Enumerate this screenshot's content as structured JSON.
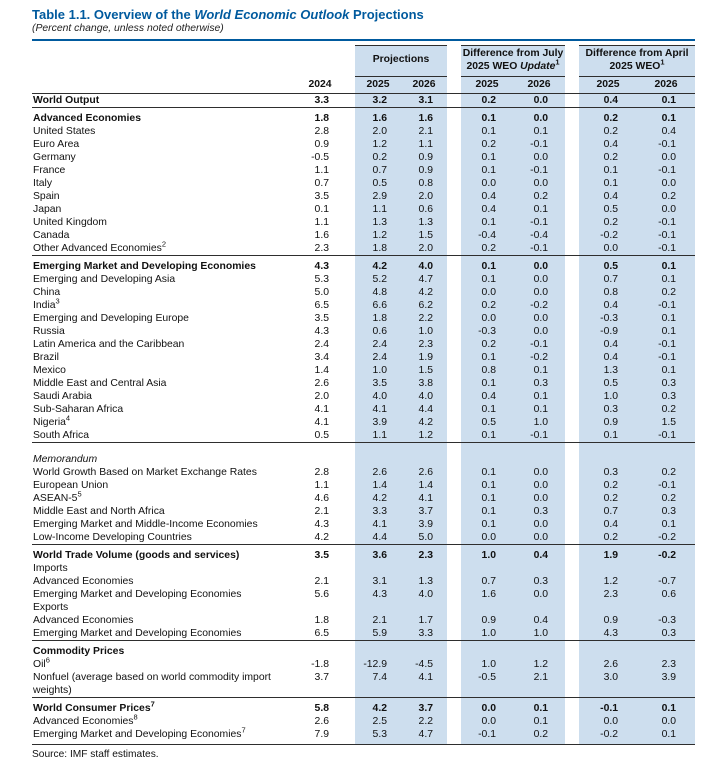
{
  "title": {
    "pre": "Table 1.1. Overview of the ",
    "italic_part": "World Economic Outlook",
    "post": " Projections"
  },
  "subtitle": "(Percent change, unless noted otherwise)",
  "source": "Source: IMF staff estimates.",
  "colors": {
    "title_blue": "#005a9e",
    "header_shade": "#cddeee",
    "rule_dark": "#2e2e2e"
  },
  "header": {
    "col_2024": "2024",
    "projections_label": "Projections",
    "diff_july": {
      "line1": "Difference from July",
      "line2_pre": "2025 WEO ",
      "line2_italic": "Update",
      "sup": "1"
    },
    "diff_april": {
      "line1": "Difference from April",
      "line2": "2025 WEO",
      "sup": "1"
    },
    "years": [
      "2025",
      "2026"
    ]
  },
  "rows": [
    {
      "label": "World Output",
      "indent": 0,
      "bold": true,
      "values": [
        "3.3",
        "3.2",
        "3.1",
        "0.2",
        "0.0",
        "0.4",
        "0.1"
      ]
    },
    {
      "label": "Advanced Economies",
      "indent": 1,
      "bold": true,
      "rule": true,
      "values": [
        "1.8",
        "1.6",
        "1.6",
        "0.1",
        "0.0",
        "0.2",
        "0.1"
      ]
    },
    {
      "label": "United States",
      "indent": 1,
      "values": [
        "2.8",
        "2.0",
        "2.1",
        "0.1",
        "0.1",
        "0.2",
        "0.4"
      ]
    },
    {
      "label": "Euro Area",
      "indent": 1,
      "values": [
        "0.9",
        "1.2",
        "1.1",
        "0.2",
        "-0.1",
        "0.4",
        "-0.1"
      ]
    },
    {
      "label": "Germany",
      "indent": 2,
      "values": [
        "-0.5",
        "0.2",
        "0.9",
        "0.1",
        "0.0",
        "0.2",
        "0.0"
      ]
    },
    {
      "label": "France",
      "indent": 2,
      "values": [
        "1.1",
        "0.7",
        "0.9",
        "0.1",
        "-0.1",
        "0.1",
        "-0.1"
      ]
    },
    {
      "label": "Italy",
      "indent": 2,
      "values": [
        "0.7",
        "0.5",
        "0.8",
        "0.0",
        "0.0",
        "0.1",
        "0.0"
      ]
    },
    {
      "label": "Spain",
      "indent": 2,
      "values": [
        "3.5",
        "2.9",
        "2.0",
        "0.4",
        "0.2",
        "0.4",
        "0.2"
      ]
    },
    {
      "label": "Japan",
      "indent": 1,
      "values": [
        "0.1",
        "1.1",
        "0.6",
        "0.4",
        "0.1",
        "0.5",
        "0.0"
      ]
    },
    {
      "label": "United Kingdom",
      "indent": 1,
      "values": [
        "1.1",
        "1.3",
        "1.3",
        "0.1",
        "-0.1",
        "0.2",
        "-0.1"
      ]
    },
    {
      "label": "Canada",
      "indent": 1,
      "values": [
        "1.6",
        "1.2",
        "1.5",
        "-0.4",
        "-0.4",
        "-0.2",
        "-0.1"
      ]
    },
    {
      "label": "Other Advanced Economies",
      "sup": "2",
      "indent": 1,
      "values": [
        "2.3",
        "1.8",
        "2.0",
        "0.2",
        "-0.1",
        "0.0",
        "-0.1"
      ]
    },
    {
      "label": "Emerging Market and Developing Economies",
      "indent": 0,
      "bold": true,
      "rule": true,
      "values": [
        "4.3",
        "4.2",
        "4.0",
        "0.1",
        "0.0",
        "0.5",
        "0.1"
      ]
    },
    {
      "label": "Emerging and Developing Asia",
      "indent": 1,
      "values": [
        "5.3",
        "5.2",
        "4.7",
        "0.1",
        "0.0",
        "0.7",
        "0.1"
      ]
    },
    {
      "label": "China",
      "indent": 2,
      "values": [
        "5.0",
        "4.8",
        "4.2",
        "0.0",
        "0.0",
        "0.8",
        "0.2"
      ]
    },
    {
      "label": "India",
      "sup": "3",
      "indent": 3,
      "values": [
        "6.5",
        "6.6",
        "6.2",
        "0.2",
        "-0.2",
        "0.4",
        "-0.1"
      ]
    },
    {
      "label": "Emerging and Developing Europe",
      "indent": 1,
      "values": [
        "3.5",
        "1.8",
        "2.2",
        "0.0",
        "0.0",
        "-0.3",
        "0.1"
      ]
    },
    {
      "label": "Russia",
      "indent": 2,
      "values": [
        "4.3",
        "0.6",
        "1.0",
        "-0.3",
        "0.0",
        "-0.9",
        "0.1"
      ]
    },
    {
      "label": "Latin America and the Caribbean",
      "indent": 1,
      "values": [
        "2.4",
        "2.4",
        "2.3",
        "0.2",
        "-0.1",
        "0.4",
        "-0.1"
      ]
    },
    {
      "label": "Brazil",
      "indent": 2,
      "values": [
        "3.4",
        "2.4",
        "1.9",
        "0.1",
        "-0.2",
        "0.4",
        "-0.1"
      ]
    },
    {
      "label": "Mexico",
      "indent": 2,
      "values": [
        "1.4",
        "1.0",
        "1.5",
        "0.8",
        "0.1",
        "1.3",
        "0.1"
      ]
    },
    {
      "label": "Middle East and Central Asia",
      "indent": 1,
      "values": [
        "2.6",
        "3.5",
        "3.8",
        "0.1",
        "0.3",
        "0.5",
        "0.3"
      ]
    },
    {
      "label": "Saudi Arabia",
      "indent": 2,
      "values": [
        "2.0",
        "4.0",
        "4.0",
        "0.4",
        "0.1",
        "1.0",
        "0.3"
      ]
    },
    {
      "label": "Sub-Saharan Africa",
      "indent": 1,
      "values": [
        "4.1",
        "4.1",
        "4.4",
        "0.1",
        "0.1",
        "0.3",
        "0.2"
      ]
    },
    {
      "label": "Nigeria",
      "sup": "4",
      "indent": 3,
      "values": [
        "4.1",
        "3.9",
        "4.2",
        "0.5",
        "1.0",
        "0.9",
        "1.5"
      ]
    },
    {
      "label": "South Africa",
      "indent": 2,
      "values": [
        "0.5",
        "1.1",
        "1.2",
        "0.1",
        "-0.1",
        "0.1",
        "-0.1"
      ]
    },
    {
      "label": "Memorandum",
      "indent": 1,
      "italic": true,
      "rule": true,
      "gap": "large",
      "values": []
    },
    {
      "label": "World Growth Based on Market Exchange Rates",
      "indent": 1,
      "values": [
        "2.8",
        "2.6",
        "2.6",
        "0.1",
        "0.0",
        "0.3",
        "0.2"
      ]
    },
    {
      "label": "European Union",
      "indent": 1,
      "values": [
        "1.1",
        "1.4",
        "1.4",
        "0.1",
        "0.0",
        "0.2",
        "-0.1"
      ]
    },
    {
      "label": "ASEAN-5",
      "sup": "5",
      "indent": 1,
      "values": [
        "4.6",
        "4.2",
        "4.1",
        "0.1",
        "0.0",
        "0.2",
        "0.2"
      ]
    },
    {
      "label": "Middle East and North Africa",
      "indent": 1,
      "values": [
        "2.1",
        "3.3",
        "3.7",
        "0.1",
        "0.3",
        "0.7",
        "0.3"
      ]
    },
    {
      "label": "Emerging Market and Middle-Income Economies",
      "indent": 1,
      "values": [
        "4.3",
        "4.1",
        "3.9",
        "0.1",
        "0.0",
        "0.4",
        "0.1"
      ]
    },
    {
      "label": "Low-Income Developing Countries",
      "indent": 1,
      "values": [
        "4.2",
        "4.4",
        "5.0",
        "0.0",
        "0.0",
        "0.2",
        "-0.2"
      ]
    },
    {
      "label": "World Trade Volume (goods and services)",
      "indent": 0,
      "bold": true,
      "rule": true,
      "values": [
        "3.5",
        "3.6",
        "2.3",
        "1.0",
        "0.4",
        "1.9",
        "-0.2"
      ]
    },
    {
      "label": "Imports",
      "indent": 0,
      "values": []
    },
    {
      "label": "Advanced Economies",
      "indent": 1,
      "values": [
        "2.1",
        "3.1",
        "1.3",
        "0.7",
        "0.3",
        "1.2",
        "-0.7"
      ]
    },
    {
      "label": "Emerging Market and Developing Economies",
      "indent": 1,
      "values": [
        "5.6",
        "4.3",
        "4.0",
        "1.6",
        "0.0",
        "2.3",
        "0.6"
      ]
    },
    {
      "label": "Exports",
      "indent": 0,
      "values": []
    },
    {
      "label": "Advanced Economies",
      "indent": 1,
      "values": [
        "1.8",
        "2.1",
        "1.7",
        "0.9",
        "0.4",
        "0.9",
        "-0.3"
      ]
    },
    {
      "label": "Emerging Market and Developing Economies",
      "indent": 1,
      "values": [
        "6.5",
        "5.9",
        "3.3",
        "1.0",
        "1.0",
        "4.3",
        "0.3"
      ]
    },
    {
      "label": "Commodity Prices",
      "indent": 0,
      "bold": true,
      "rule": true,
      "values": []
    },
    {
      "label": "Oil",
      "sup": "6",
      "indent": 0,
      "values": [
        "-1.8",
        "-12.9",
        "-4.5",
        "1.0",
        "1.2",
        "2.6",
        "2.3"
      ]
    },
    {
      "label": "Nonfuel (average based on world commodity import weights)",
      "indent": 0,
      "values": [
        "3.7",
        "7.4",
        "4.1",
        "-0.5",
        "2.1",
        "3.0",
        "3.9"
      ]
    },
    {
      "label": "World Consumer Prices",
      "sup": "7",
      "indent": 0,
      "bold": true,
      "rule": true,
      "values": [
        "5.8",
        "4.2",
        "3.7",
        "0.0",
        "0.1",
        "-0.1",
        "0.1"
      ]
    },
    {
      "label": "Advanced Economies",
      "sup": "8",
      "indent": 0,
      "values": [
        "2.6",
        "2.5",
        "2.2",
        "0.0",
        "0.1",
        "0.0",
        "0.0"
      ]
    },
    {
      "label": "Emerging Market and Developing Economies",
      "sup": "7",
      "indent": 0,
      "values": [
        "7.9",
        "5.3",
        "4.7",
        "-0.1",
        "0.2",
        "-0.2",
        "0.1"
      ]
    }
  ]
}
